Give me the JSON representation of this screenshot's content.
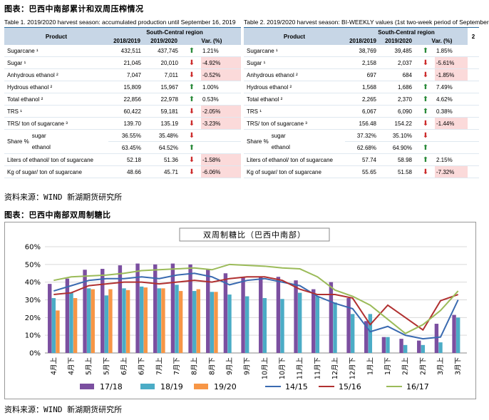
{
  "caption1": "图表：巴西中南部累计和双周压榨情况",
  "caption2": "图表：巴西中南部双周制糖比",
  "source": "资料来源：WIND 新湖期货研究所",
  "table1": {
    "title": "Table 1. 2019/2020 harvest season: accumulated production until September 16, 2019",
    "h_product": "Product",
    "h_region": "South-Central region",
    "h_y1": "2018/2019",
    "h_y2": "2019/2020",
    "h_var": "Var. (%)",
    "rows": [
      {
        "p": "Sugarcane ¹",
        "a": "432,511",
        "b": "437,745",
        "v": "1.21%",
        "d": "up"
      },
      {
        "p": "Sugar ¹",
        "a": "21,045",
        "b": "20,010",
        "v": "-4.92%",
        "d": "dn"
      },
      {
        "p": "Anhydrous ethanol ²",
        "a": "7,047",
        "b": "7,011",
        "v": "-0.52%",
        "d": "dn"
      },
      {
        "p": "Hydrous ethanol ²",
        "a": "15,809",
        "b": "15,967",
        "v": "1.00%",
        "d": "up"
      },
      {
        "p": "Total ethanol ²",
        "a": "22,856",
        "b": "22,978",
        "v": "0.53%",
        "d": "up"
      },
      {
        "p": "TRS ¹",
        "a": "60,422",
        "b": "59,181",
        "v": "-2.05%",
        "d": "dn"
      },
      {
        "p": "TRS/ ton of sugarcane ³",
        "a": "139.70",
        "b": "135.19",
        "v": "-3.23%",
        "d": "dn"
      }
    ],
    "share_label": "Share %",
    "share_sugar": "sugar",
    "share_ethanol": "ethanol",
    "share_sugar_a": "36.55%",
    "share_sugar_b": "35.48%",
    "share_eth_a": "63.45%",
    "share_eth_b": "64.52%",
    "rows2": [
      {
        "p": "Liters of ethanol/ ton of sugarcane",
        "a": "52.18",
        "b": "51.36",
        "v": "-1.58%",
        "d": "dn"
      },
      {
        "p": "Kg of sugar/ ton of sugarcane",
        "a": "48.66",
        "b": "45.71",
        "v": "-6.06%",
        "d": "dn"
      }
    ]
  },
  "table2": {
    "title": "Table 2. 2019/2020 harvest season: BI-WEEKLY values (1st two-week period of September",
    "h_product": "Product",
    "h_region": "South-Central region",
    "h_y1": "2018/2019",
    "h_y2": "2019/2020",
    "h_var": "Var. (%)",
    "h_extra": "2",
    "rows": [
      {
        "p": "Sugarcane ¹",
        "a": "38,769",
        "b": "39,485",
        "v": "1.85%",
        "d": "up"
      },
      {
        "p": "Sugar ¹",
        "a": "2,158",
        "b": "2,037",
        "v": "-5.61%",
        "d": "dn"
      },
      {
        "p": "Anhydrous ethanol ²",
        "a": "697",
        "b": "684",
        "v": "-1.85%",
        "d": "dn"
      },
      {
        "p": "Hydrous ethanol ²",
        "a": "1,568",
        "b": "1,686",
        "v": "7.49%",
        "d": "up"
      },
      {
        "p": "Total ethanol ²",
        "a": "2,265",
        "b": "2,370",
        "v": "4.62%",
        "d": "up"
      },
      {
        "p": "TRS ¹",
        "a": "6,067",
        "b": "6,090",
        "v": "0.38%",
        "d": "up"
      },
      {
        "p": "TRS/ ton of sugarcane ³",
        "a": "156.48",
        "b": "154.22",
        "v": "-1.44%",
        "d": "dn"
      }
    ],
    "share_label": "Share %",
    "share_sugar": "sugar",
    "share_ethanol": "ethanol",
    "share_sugar_a": "37.32%",
    "share_sugar_b": "35.10%",
    "share_eth_a": "62.68%",
    "share_eth_b": "64.90%",
    "rows2": [
      {
        "p": "Liters of ethanol/ ton of sugarcane",
        "a": "57.74",
        "b": "58.98",
        "v": "2.15%",
        "d": "up"
      },
      {
        "p": "Kg of sugar/ ton of sugarcane",
        "a": "55.65",
        "b": "51.58",
        "v": "-7.32%",
        "d": "dn"
      }
    ]
  },
  "chart_data": {
    "type": "bar",
    "title": "双周制糖比（巴西中南部）",
    "categories": [
      "4月上",
      "4月下",
      "5月上",
      "5月下",
      "6月上",
      "6月下",
      "7月上",
      "7月下",
      "8月上",
      "8月下",
      "9月上",
      "9月下",
      "10月上",
      "10月下",
      "11月上",
      "11月下",
      "12月上",
      "12月下",
      "1月上",
      "1月下",
      "2月上",
      "2月下",
      "3月上",
      "3月下"
    ],
    "ylim": [
      0,
      60
    ],
    "yticks": [
      "0%",
      "10%",
      "20%",
      "30%",
      "40%",
      "50%",
      "60%"
    ],
    "series": [
      {
        "name": "17/18",
        "kind": "bar",
        "color": "#7b4fa0",
        "values": [
          39,
          42,
          47,
          47.5,
          49.5,
          50.5,
          50,
          50.5,
          50,
          47.5,
          45,
          43,
          43,
          43,
          41,
          36,
          40,
          31,
          18,
          9,
          8,
          7,
          16.5,
          21.5
        ]
      },
      {
        "name": "18/19",
        "kind": "bar",
        "color": "#4bacc6",
        "values": [
          31,
          34,
          36.5,
          32.5,
          36.5,
          37.5,
          36.5,
          38.5,
          35,
          34.5,
          33,
          32,
          31,
          30.5,
          34,
          32,
          28.5,
          22,
          22,
          9,
          4.5,
          4.5,
          6,
          20
        ]
      },
      {
        "name": "19/20",
        "kind": "bar",
        "color": "#f79646",
        "values": [
          24,
          31,
          36,
          36,
          35.5,
          37,
          36.5,
          35,
          36,
          34.5,
          null,
          null,
          null,
          null,
          null,
          null,
          null,
          null,
          null,
          null,
          null,
          null,
          null,
          null
        ]
      },
      {
        "name": "14/15",
        "kind": "line",
        "color": "#3a6ab0",
        "values": [
          35,
          38,
          41,
          42,
          42,
          43,
          42,
          44,
          45,
          43,
          38.5,
          41,
          42,
          40,
          38,
          32,
          28,
          25,
          12,
          15,
          10,
          8,
          9,
          30
        ]
      },
      {
        "name": "15/16",
        "kind": "line",
        "color": "#b03030",
        "values": [
          33,
          34,
          38,
          39,
          40,
          40,
          39,
          40,
          41,
          40,
          42,
          43,
          43,
          41,
          36,
          33,
          33,
          31,
          16,
          27,
          20,
          13,
          29.5,
          33
        ]
      },
      {
        "name": "16/17",
        "kind": "line",
        "color": "#9bbb59",
        "values": [
          41,
          43,
          43.5,
          44,
          45,
          46.5,
          47,
          47.5,
          48,
          47,
          50,
          49.5,
          49,
          48,
          47.5,
          43,
          35.5,
          32,
          27,
          19,
          11,
          16,
          24,
          35
        ]
      }
    ]
  }
}
